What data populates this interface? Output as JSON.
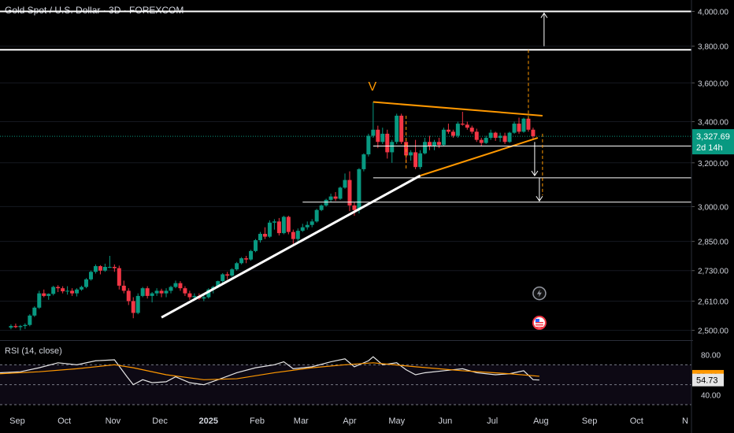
{
  "chart_data": {
    "type": "candlestick",
    "title": "Gold Spot / U.S. Dollar · 3D · FOREXCOM",
    "price_axis": {
      "scale": "log",
      "ticks": [
        2500,
        2610,
        2730,
        2850,
        3000,
        3200,
        3400,
        3600,
        3800,
        4000
      ],
      "tick_labels": [
        "2,500.00",
        "2,610.00",
        "2,730.00",
        "2,850.00",
        "3,000.00",
        "3,200.00",
        "3,400.00",
        "3,600.00",
        "3,800.00",
        "4,000.00"
      ],
      "range": [
        2470,
        4030
      ]
    },
    "time_axis": {
      "labels": [
        "Sep",
        "Oct",
        "Nov",
        "Dec",
        "2025",
        "Feb",
        "Mar",
        "Apr",
        "May",
        "Jun",
        "Jul",
        "Aug",
        "Sep",
        "Oct",
        "N"
      ],
      "start": "2024-08-21",
      "end": "2025-11-05"
    },
    "last_price": {
      "value": 3327.69,
      "label": "3,327.69",
      "countdown": "2d 14h",
      "color": "#089981"
    },
    "candles": [
      [
        "2024-08-28",
        2510,
        2522,
        2504,
        2516
      ],
      [
        "2024-08-31",
        2516,
        2525,
        2508,
        2512
      ],
      [
        "2024-09-03",
        2512,
        2520,
        2500,
        2516
      ],
      [
        "2024-09-06",
        2516,
        2526,
        2505,
        2520
      ],
      [
        "2024-09-09",
        2520,
        2560,
        2515,
        2555
      ],
      [
        "2024-09-12",
        2555,
        2590,
        2550,
        2585
      ],
      [
        "2024-09-15",
        2585,
        2650,
        2580,
        2640
      ],
      [
        "2024-09-18",
        2640,
        2655,
        2625,
        2630
      ],
      [
        "2024-09-21",
        2630,
        2640,
        2615,
        2638
      ],
      [
        "2024-09-24",
        2638,
        2670,
        2632,
        2665
      ],
      [
        "2024-09-27",
        2665,
        2672,
        2645,
        2660
      ],
      [
        "2024-09-30",
        2660,
        2668,
        2640,
        2648
      ],
      [
        "2024-10-03",
        2648,
        2668,
        2635,
        2650
      ],
      [
        "2024-10-06",
        2650,
        2660,
        2630,
        2640
      ],
      [
        "2024-10-09",
        2640,
        2660,
        2628,
        2655
      ],
      [
        "2024-10-12",
        2655,
        2670,
        2650,
        2665
      ],
      [
        "2024-10-15",
        2665,
        2700,
        2660,
        2695
      ],
      [
        "2024-10-18",
        2695,
        2730,
        2690,
        2725
      ],
      [
        "2024-10-21",
        2725,
        2755,
        2718,
        2748
      ],
      [
        "2024-10-24",
        2748,
        2752,
        2715,
        2730
      ],
      [
        "2024-10-27",
        2730,
        2758,
        2725,
        2745
      ],
      [
        "2024-10-30",
        2745,
        2790,
        2740,
        2745
      ],
      [
        "2024-11-02",
        2745,
        2755,
        2725,
        2740
      ],
      [
        "2024-11-05",
        2740,
        2750,
        2655,
        2670
      ],
      [
        "2024-11-08",
        2670,
        2690,
        2640,
        2650
      ],
      [
        "2024-11-11",
        2650,
        2660,
        2595,
        2610
      ],
      [
        "2024-11-14",
        2610,
        2625,
        2545,
        2565
      ],
      [
        "2024-11-17",
        2565,
        2640,
        2560,
        2630
      ],
      [
        "2024-11-20",
        2630,
        2665,
        2625,
        2660
      ],
      [
        "2024-11-23",
        2660,
        2668,
        2620,
        2630
      ],
      [
        "2024-11-26",
        2630,
        2645,
        2605,
        2640
      ],
      [
        "2024-11-29",
        2640,
        2660,
        2630,
        2650
      ],
      [
        "2024-12-02",
        2650,
        2658,
        2625,
        2640
      ],
      [
        "2024-12-05",
        2640,
        2660,
        2625,
        2650
      ],
      [
        "2024-12-08",
        2650,
        2670,
        2640,
        2665
      ],
      [
        "2024-12-11",
        2665,
        2690,
        2660,
        2680
      ],
      [
        "2024-12-14",
        2680,
        2688,
        2650,
        2660
      ],
      [
        "2024-12-17",
        2660,
        2668,
        2630,
        2640
      ],
      [
        "2024-12-20",
        2640,
        2650,
        2615,
        2625
      ],
      [
        "2024-12-23",
        2625,
        2640,
        2615,
        2630
      ],
      [
        "2024-12-26",
        2630,
        2640,
        2615,
        2620
      ],
      [
        "2024-12-29",
        2620,
        2632,
        2610,
        2625
      ],
      [
        "2025-01-01",
        2625,
        2660,
        2620,
        2655
      ],
      [
        "2025-01-04",
        2655,
        2670,
        2640,
        2665
      ],
      [
        "2025-01-07",
        2665,
        2690,
        2660,
        2688
      ],
      [
        "2025-01-10",
        2688,
        2720,
        2682,
        2715
      ],
      [
        "2025-01-13",
        2715,
        2725,
        2695,
        2710
      ],
      [
        "2025-01-16",
        2710,
        2740,
        2705,
        2735
      ],
      [
        "2025-01-19",
        2735,
        2765,
        2730,
        2760
      ],
      [
        "2025-01-22",
        2760,
        2785,
        2755,
        2780
      ],
      [
        "2025-01-25",
        2780,
        2790,
        2760,
        2775
      ],
      [
        "2025-01-28",
        2775,
        2815,
        2770,
        2810
      ],
      [
        "2025-01-31",
        2810,
        2860,
        2805,
        2855
      ],
      [
        "2025-02-03",
        2855,
        2890,
        2845,
        2882
      ],
      [
        "2025-02-06",
        2882,
        2910,
        2860,
        2870
      ],
      [
        "2025-02-09",
        2870,
        2940,
        2865,
        2930
      ],
      [
        "2025-02-12",
        2930,
        2945,
        2900,
        2935
      ],
      [
        "2025-02-15",
        2935,
        2950,
        2875,
        2885
      ],
      [
        "2025-02-18",
        2885,
        2960,
        2880,
        2955
      ],
      [
        "2025-02-21",
        2955,
        2960,
        2880,
        2890
      ],
      [
        "2025-02-24",
        2890,
        2900,
        2840,
        2860
      ],
      [
        "2025-02-27",
        2860,
        2905,
        2850,
        2895
      ],
      [
        "2025-03-02",
        2895,
        2925,
        2890,
        2910
      ],
      [
        "2025-03-05",
        2910,
        2935,
        2900,
        2920
      ],
      [
        "2025-03-08",
        2920,
        2945,
        2910,
        2935
      ],
      [
        "2025-03-11",
        2935,
        2990,
        2930,
        2985
      ],
      [
        "2025-03-14",
        2985,
        3010,
        2980,
        3005
      ],
      [
        "2025-03-17",
        3005,
        3035,
        3000,
        3030
      ],
      [
        "2025-03-20",
        3030,
        3058,
        3020,
        3045
      ],
      [
        "2025-03-23",
        3045,
        3065,
        3025,
        3035
      ],
      [
        "2025-03-26",
        3035,
        3090,
        3030,
        3085
      ],
      [
        "2025-03-29",
        3085,
        3150,
        3080,
        3120
      ],
      [
        "2025-04-01",
        3120,
        3160,
        2980,
        3005
      ],
      [
        "2025-04-04",
        3005,
        3020,
        2960,
        2985
      ],
      [
        "2025-04-07",
        2985,
        3175,
        2970,
        3170
      ],
      [
        "2025-04-10",
        3170,
        3245,
        3160,
        3240
      ],
      [
        "2025-04-13",
        3240,
        3340,
        3230,
        3330
      ],
      [
        "2025-04-16",
        3330,
        3500,
        3320,
        3360
      ],
      [
        "2025-04-19",
        3360,
        3380,
        3270,
        3300
      ],
      [
        "2025-04-22",
        3300,
        3370,
        3290,
        3340
      ],
      [
        "2025-04-25",
        3340,
        3360,
        3220,
        3250
      ],
      [
        "2025-04-28",
        3250,
        3310,
        3200,
        3300
      ],
      [
        "2025-05-01",
        3300,
        3440,
        3290,
        3430
      ],
      [
        "2025-05-04",
        3430,
        3440,
        3290,
        3300
      ],
      [
        "2025-05-07",
        3300,
        3310,
        3200,
        3235
      ],
      [
        "2025-05-10",
        3235,
        3260,
        3210,
        3250
      ],
      [
        "2025-05-13",
        3250,
        3310,
        3170,
        3180
      ],
      [
        "2025-05-16",
        3180,
        3260,
        3170,
        3245
      ],
      [
        "2025-05-19",
        3245,
        3320,
        3240,
        3300
      ],
      [
        "2025-05-22",
        3300,
        3330,
        3260,
        3280
      ],
      [
        "2025-05-25",
        3280,
        3310,
        3260,
        3300
      ],
      [
        "2025-05-28",
        3300,
        3320,
        3270,
        3285
      ],
      [
        "2025-05-31",
        3285,
        3370,
        3280,
        3360
      ],
      [
        "2025-06-03",
        3360,
        3390,
        3340,
        3350
      ],
      [
        "2025-06-06",
        3350,
        3360,
        3320,
        3330
      ],
      [
        "2025-06-09",
        3330,
        3400,
        3320,
        3390
      ],
      [
        "2025-06-12",
        3390,
        3450,
        3380,
        3385
      ],
      [
        "2025-06-15",
        3385,
        3400,
        3360,
        3370
      ],
      [
        "2025-06-18",
        3370,
        3380,
        3340,
        3350
      ],
      [
        "2025-06-21",
        3350,
        3365,
        3300,
        3310
      ],
      [
        "2025-06-24",
        3310,
        3320,
        3280,
        3295
      ],
      [
        "2025-06-27",
        3295,
        3330,
        3290,
        3320
      ],
      [
        "2025-06-30",
        3320,
        3360,
        3310,
        3345
      ],
      [
        "2025-07-03",
        3345,
        3350,
        3305,
        3320
      ],
      [
        "2025-07-06",
        3320,
        3345,
        3300,
        3330
      ],
      [
        "2025-07-09",
        3330,
        3345,
        3290,
        3300
      ],
      [
        "2025-07-12",
        3300,
        3350,
        3295,
        3345
      ],
      [
        "2025-07-15",
        3345,
        3400,
        3340,
        3390
      ],
      [
        "2025-07-18",
        3390,
        3420,
        3340,
        3350
      ],
      [
        "2025-07-21",
        3350,
        3420,
        3345,
        3415
      ],
      [
        "2025-07-24",
        3415,
        3420,
        3350,
        3360
      ],
      [
        "2025-07-27",
        3360,
        3370,
        3310,
        3328
      ]
    ],
    "annotations": [
      {
        "kind": "line",
        "desc": "white rising trendline",
        "color": "#ffffff",
        "points": [
          [
            "2024-12-02",
            2548
          ],
          [
            "2025-05-16",
            3140
          ]
        ]
      },
      {
        "kind": "line",
        "desc": "orange lower triangle line",
        "color": "#ff9800",
        "points": [
          [
            "2025-05-16",
            3140
          ],
          [
            "2025-07-30",
            3320
          ]
        ]
      },
      {
        "kind": "line",
        "desc": "orange upper triangle line",
        "color": "#ff9800",
        "points": [
          [
            "2025-04-16",
            3500
          ],
          [
            "2025-08-02",
            3430
          ]
        ]
      },
      {
        "kind": "line",
        "desc": "horizontal level",
        "color": "#ffffff",
        "points": [
          [
            "2024-08-21",
            4000
          ],
          [
            "2025-11-05",
            4000
          ]
        ]
      },
      {
        "kind": "line",
        "desc": "horizontal level",
        "color": "#ffffff",
        "points": [
          [
            "2024-08-21",
            3780
          ],
          [
            "2025-11-05",
            3780
          ]
        ]
      },
      {
        "kind": "line",
        "desc": "horizontal level",
        "color": "#ffffff",
        "points": [
          [
            "2025-04-16",
            3280
          ],
          [
            "2025-11-05",
            3280
          ]
        ]
      },
      {
        "kind": "line",
        "desc": "horizontal level",
        "color": "#ffffff",
        "points": [
          [
            "2025-04-16",
            3130
          ],
          [
            "2025-11-05",
            3130
          ]
        ]
      },
      {
        "kind": "line",
        "desc": "horizontal level",
        "color": "#ffffff",
        "points": [
          [
            "2025-03-02",
            3020
          ],
          [
            "2025-11-05",
            3020
          ]
        ]
      },
      {
        "kind": "vline",
        "desc": "orange dashed vertical",
        "color": "#ff9800",
        "points": [
          [
            "2025-05-07",
            3430
          ],
          [
            "2025-05-07",
            3170
          ]
        ]
      },
      {
        "kind": "vline",
        "desc": "orange dashed vertical",
        "color": "#ff9800",
        "points": [
          [
            "2025-07-24",
            3780
          ],
          [
            "2025-07-24",
            3400
          ]
        ]
      },
      {
        "kind": "vline",
        "desc": "orange dashed vertical",
        "color": "#ff9800",
        "points": [
          [
            "2025-08-02",
            3340
          ],
          [
            "2025-08-02",
            3050
          ]
        ]
      },
      {
        "kind": "arrow",
        "desc": "target arrow up",
        "color": "#ffffff",
        "points": [
          [
            "2025-08-03",
            3800
          ],
          [
            "2025-08-03",
            3990
          ]
        ]
      },
      {
        "kind": "arrow",
        "desc": "arrow down",
        "color": "#ffffff",
        "points": [
          [
            "2025-07-28",
            3300
          ],
          [
            "2025-07-28",
            3140
          ]
        ]
      },
      {
        "kind": "arrow",
        "desc": "arrow down",
        "color": "#ffffff",
        "points": [
          [
            "2025-07-31",
            3130
          ],
          [
            "2025-07-31",
            3025
          ]
        ]
      }
    ],
    "pattern_label": {
      "text": "V",
      "date": "2025-04-16",
      "color": "#ff9800"
    },
    "rsi": {
      "title": "RSI (14, close)",
      "ticks": [
        80,
        40
      ],
      "tick_labels": [
        "80.00",
        "40.00"
      ],
      "range": [
        30,
        90
      ],
      "levels": [
        70,
        50,
        30
      ],
      "rsi_last": {
        "label": "54.73",
        "value": 54.73
      },
      "ma_last": {
        "label": "58.46",
        "value": 58.46,
        "color": "#ff9800"
      },
      "rsi_points": [
        [
          "2024-08-21",
          62
        ],
        [
          "2024-09-03",
          63
        ],
        [
          "2024-09-15",
          67
        ],
        [
          "2024-09-27",
          72
        ],
        [
          "2024-10-09",
          70
        ],
        [
          "2024-10-21",
          74
        ],
        [
          "2024-11-02",
          75
        ],
        [
          "2024-11-10",
          58
        ],
        [
          "2024-11-14",
          50
        ],
        [
          "2024-11-20",
          55
        ],
        [
          "2024-11-26",
          52
        ],
        [
          "2024-12-05",
          53
        ],
        [
          "2024-12-11",
          58
        ],
        [
          "2024-12-20",
          52
        ],
        [
          "2024-12-29",
          50
        ],
        [
          "2025-01-07",
          55
        ],
        [
          "2025-01-19",
          62
        ],
        [
          "2025-01-31",
          67
        ],
        [
          "2025-02-12",
          70
        ],
        [
          "2025-02-18",
          73
        ],
        [
          "2025-02-24",
          66
        ],
        [
          "2025-03-08",
          68
        ],
        [
          "2025-03-20",
          73
        ],
        [
          "2025-03-29",
          76
        ],
        [
          "2025-04-04",
          68
        ],
        [
          "2025-04-13",
          74
        ],
        [
          "2025-04-16",
          78
        ],
        [
          "2025-04-22",
          70
        ],
        [
          "2025-05-01",
          72
        ],
        [
          "2025-05-07",
          65
        ],
        [
          "2025-05-13",
          60
        ],
        [
          "2025-05-19",
          62
        ],
        [
          "2025-05-31",
          64
        ],
        [
          "2025-06-12",
          66
        ],
        [
          "2025-06-21",
          62
        ],
        [
          "2025-07-03",
          60
        ],
        [
          "2025-07-12",
          61
        ],
        [
          "2025-07-21",
          64
        ],
        [
          "2025-07-27",
          55
        ],
        [
          "2025-07-31",
          54.73
        ]
      ],
      "ma_points": [
        [
          "2024-08-21",
          61
        ],
        [
          "2024-09-15",
          63
        ],
        [
          "2024-10-09",
          66
        ],
        [
          "2024-11-02",
          70
        ],
        [
          "2024-11-14",
          67
        ],
        [
          "2024-12-05",
          60
        ],
        [
          "2024-12-29",
          55
        ],
        [
          "2025-01-19",
          56
        ],
        [
          "2025-02-12",
          62
        ],
        [
          "2025-03-08",
          67
        ],
        [
          "2025-03-29",
          70
        ],
        [
          "2025-04-16",
          72
        ],
        [
          "2025-05-13",
          68
        ],
        [
          "2025-06-12",
          64
        ],
        [
          "2025-07-12",
          61
        ],
        [
          "2025-07-31",
          58.46
        ]
      ]
    },
    "colors": {
      "up": "#089981",
      "down": "#f23645",
      "background": "#000000",
      "axis_text": "#d1d4dc"
    }
  },
  "ui": {
    "rsi_panel_label": "RSI (14, close)",
    "icons": [
      "lightning-icon",
      "us-flag-icon"
    ]
  }
}
